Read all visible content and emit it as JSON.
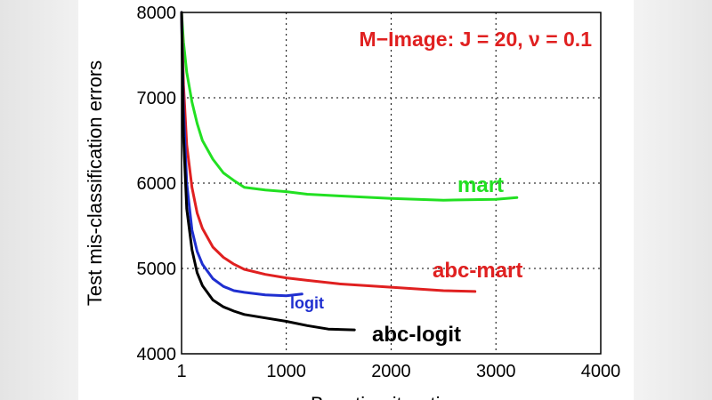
{
  "chart_data": {
    "type": "line",
    "title": "M−Image: J = 20, ν = 0.1",
    "title_color": "#e02020",
    "ylabel": "Test mis-classification errors",
    "xlabel": "Boosting iterations",
    "xlim": [
      1,
      4000
    ],
    "ylim": [
      4000,
      8000
    ],
    "xticks": [
      1,
      1000,
      2000,
      3000,
      4000
    ],
    "xtick_labels": [
      "1",
      "1000",
      "2000",
      "3000",
      "4000"
    ],
    "yticks": [
      4000,
      5000,
      6000,
      7000,
      8000
    ],
    "ytick_labels": [
      "4000",
      "5000",
      "6000",
      "7000",
      "8000"
    ],
    "grid": true,
    "series": [
      {
        "name": "mart",
        "color": "#22e022",
        "x": [
          1,
          20,
          50,
          100,
          150,
          200,
          300,
          400,
          500,
          600,
          800,
          1000,
          1200,
          1500,
          2000,
          2500,
          3000,
          3200
        ],
        "y": [
          8000,
          7650,
          7300,
          6950,
          6700,
          6500,
          6280,
          6120,
          6030,
          5950,
          5920,
          5900,
          5870,
          5850,
          5820,
          5800,
          5810,
          5830
        ]
      },
      {
        "name": "abc-mart",
        "color": "#e02020",
        "x": [
          1,
          20,
          50,
          100,
          150,
          200,
          300,
          400,
          500,
          600,
          800,
          1000,
          1200,
          1500,
          2000,
          2500,
          2800
        ],
        "y": [
          8000,
          7150,
          6450,
          5950,
          5650,
          5470,
          5250,
          5130,
          5050,
          4990,
          4930,
          4890,
          4860,
          4820,
          4780,
          4740,
          4730
        ]
      },
      {
        "name": "logit",
        "color": "#1f2fd0",
        "x": [
          1,
          20,
          50,
          100,
          150,
          200,
          300,
          400,
          500,
          600,
          800,
          1000,
          1150
        ],
        "y": [
          8000,
          6850,
          6000,
          5450,
          5200,
          5050,
          4880,
          4790,
          4740,
          4720,
          4690,
          4680,
          4700
        ]
      },
      {
        "name": "abc-logit",
        "color": "#000000",
        "x": [
          1,
          20,
          50,
          100,
          150,
          200,
          300,
          400,
          500,
          600,
          800,
          1000,
          1200,
          1400,
          1650
        ],
        "y": [
          8000,
          6550,
          5700,
          5220,
          4950,
          4800,
          4630,
          4550,
          4500,
          4460,
          4420,
          4380,
          4330,
          4290,
          4280
        ]
      }
    ]
  }
}
